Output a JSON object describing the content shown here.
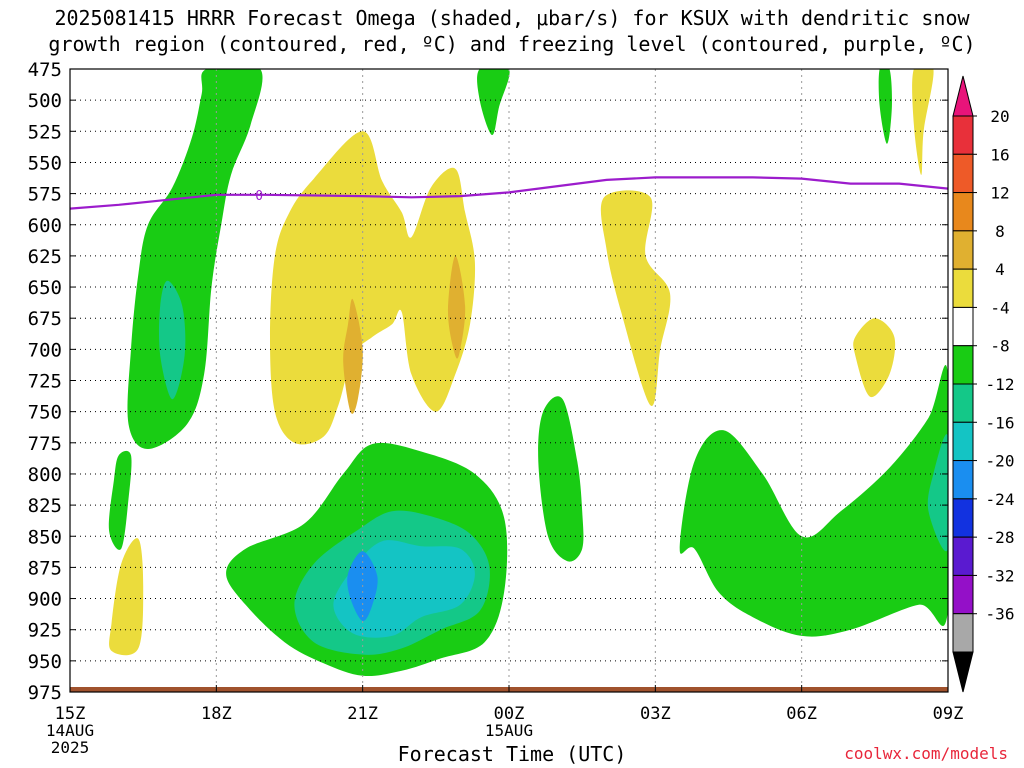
{
  "title_line1": "2025081415 HRRR Forecast Omega (shaded, μbar/s) for KSUX with dendritic snow",
  "title_line2": "growth region (contoured, red, ºC) and freezing level (contoured, purple, ºC)",
  "credit": "coolwx.com/models",
  "chart_data": {
    "type": "contour",
    "title": "2025081415 HRRR Forecast Omega (shaded, μbar/s) for KSUX with dendritic snow growth region (contoured, red, ºC) and freezing level (contoured, purple, ºC)",
    "xlabel": "Forecast Time (UTC)",
    "ylabel": "",
    "x_ticks": [
      {
        "hour": 0,
        "label": "15Z",
        "sub": [
          "14AUG",
          "2025"
        ]
      },
      {
        "hour": 3,
        "label": "18Z",
        "sub": []
      },
      {
        "hour": 6,
        "label": "21Z",
        "sub": []
      },
      {
        "hour": 9,
        "label": "00Z",
        "sub": [
          "15AUG"
        ]
      },
      {
        "hour": 12,
        "label": "03Z",
        "sub": []
      },
      {
        "hour": 15,
        "label": "06Z",
        "sub": []
      },
      {
        "hour": 18,
        "label": "09Z",
        "sub": []
      }
    ],
    "xlim": [
      0,
      18
    ],
    "ylim": [
      475,
      975
    ],
    "y_ticks": [
      475,
      500,
      525,
      550,
      575,
      600,
      625,
      650,
      675,
      700,
      725,
      750,
      775,
      800,
      825,
      850,
      875,
      900,
      925,
      950,
      975
    ],
    "colorbar": {
      "labels": [
        20,
        16,
        12,
        8,
        4,
        -4,
        -8,
        -12,
        -16,
        -20,
        -24,
        -28,
        -32,
        -36
      ],
      "colors": [
        "#e8147a",
        "#e8303a",
        "#ee5a28",
        "#e8881c",
        "#e0b030",
        "#ebdc3c",
        "#ffffff",
        "#19cc14",
        "#14c888",
        "#14c4c4",
        "#1a8ef0",
        "#1232e0",
        "#5a1ad0",
        "#9410c8",
        "#a8a8a8",
        "#000000"
      ]
    },
    "freezing_level": {
      "label": "0",
      "points": [
        [
          0,
          587
        ],
        [
          1,
          584
        ],
        [
          2,
          580
        ],
        [
          3,
          576
        ],
        [
          4,
          576
        ],
        [
          6,
          577
        ],
        [
          7,
          578
        ],
        [
          8,
          577
        ],
        [
          9,
          574
        ],
        [
          10,
          569
        ],
        [
          11,
          564
        ],
        [
          12,
          562
        ],
        [
          13,
          562
        ],
        [
          14,
          562
        ],
        [
          15,
          563
        ],
        [
          16,
          567
        ],
        [
          17,
          567
        ],
        [
          18,
          571
        ]
      ]
    },
    "omega_regions": [
      {
        "level": "-4",
        "color": "#19cc14",
        "points": [
          [
            2.8,
            475
          ],
          [
            3.9,
            475
          ],
          [
            3.7,
            520
          ],
          [
            3.3,
            560
          ],
          [
            3.1,
            600
          ],
          [
            2.9,
            650
          ],
          [
            2.75,
            720
          ],
          [
            2.4,
            760
          ],
          [
            1.6,
            780
          ],
          [
            1.2,
            760
          ],
          [
            1.25,
            700
          ],
          [
            1.4,
            640
          ],
          [
            1.6,
            600
          ],
          [
            2.1,
            570
          ],
          [
            2.5,
            530
          ],
          [
            2.7,
            495
          ]
        ]
      },
      {
        "level": "-8",
        "color": "#14c888",
        "points": [
          [
            2.0,
            645
          ],
          [
            2.3,
            665
          ],
          [
            2.35,
            705
          ],
          [
            2.1,
            740
          ],
          [
            1.85,
            705
          ],
          [
            1.85,
            665
          ]
        ]
      },
      {
        "level": "-4",
        "color": "#19cc14",
        "points": [
          [
            1.0,
            785
          ],
          [
            1.25,
            785
          ],
          [
            1.2,
            820
          ],
          [
            1.05,
            860
          ],
          [
            0.8,
            845
          ],
          [
            0.9,
            805
          ]
        ]
      },
      {
        "level": "-4",
        "color": "#19cc14",
        "points": [
          [
            8.4,
            475
          ],
          [
            9.0,
            475
          ],
          [
            8.8,
            505
          ],
          [
            8.65,
            528
          ],
          [
            8.4,
            500
          ]
        ]
      },
      {
        "level": "-4",
        "color": "#19cc14",
        "points": [
          [
            16.6,
            475
          ],
          [
            16.8,
            475
          ],
          [
            16.85,
            505
          ],
          [
            16.75,
            535
          ],
          [
            16.6,
            505
          ]
        ]
      },
      {
        "level": "-4",
        "color": "#19cc14",
        "points": [
          [
            9.7,
            750
          ],
          [
            10.1,
            740
          ],
          [
            10.4,
            790
          ],
          [
            10.5,
            830
          ],
          [
            10.5,
            860
          ],
          [
            10.2,
            870
          ],
          [
            9.8,
            850
          ],
          [
            9.6,
            790
          ]
        ]
      },
      {
        "level": "-4",
        "color": "#19cc14",
        "points": [
          [
            6.2,
            776
          ],
          [
            7.2,
            782
          ],
          [
            8.3,
            800
          ],
          [
            8.9,
            835
          ],
          [
            8.9,
            895
          ],
          [
            8.5,
            935
          ],
          [
            7.6,
            948
          ],
          [
            6.8,
            958
          ],
          [
            6.0,
            962
          ],
          [
            5.2,
            952
          ],
          [
            4.4,
            935
          ],
          [
            3.6,
            905
          ],
          [
            3.2,
            880
          ],
          [
            3.6,
            860
          ],
          [
            4.8,
            840
          ],
          [
            5.6,
            800
          ]
        ]
      },
      {
        "level": "-8",
        "color": "#14c888",
        "points": [
          [
            6.6,
            830
          ],
          [
            7.4,
            834
          ],
          [
            8.2,
            848
          ],
          [
            8.6,
            875
          ],
          [
            8.4,
            910
          ],
          [
            7.6,
            925
          ],
          [
            6.8,
            940
          ],
          [
            6.0,
            945
          ],
          [
            5.0,
            935
          ],
          [
            4.6,
            905
          ],
          [
            5.0,
            872
          ],
          [
            5.9,
            845
          ]
        ]
      },
      {
        "level": "-12",
        "color": "#14c4c4",
        "points": [
          [
            6.4,
            854
          ],
          [
            7.2,
            858
          ],
          [
            8.0,
            860
          ],
          [
            8.3,
            880
          ],
          [
            8.0,
            905
          ],
          [
            7.2,
            915
          ],
          [
            6.6,
            930
          ],
          [
            5.8,
            928
          ],
          [
            5.4,
            905
          ],
          [
            5.8,
            876
          ]
        ]
      },
      {
        "level": "-16",
        "color": "#1a8ef0",
        "points": [
          [
            6.0,
            862
          ],
          [
            6.3,
            882
          ],
          [
            6.2,
            905
          ],
          [
            6.0,
            918
          ],
          [
            5.75,
            900
          ],
          [
            5.7,
            880
          ]
        ]
      },
      {
        "level": "-4",
        "color": "#19cc14",
        "points": [
          [
            12.8,
            790
          ],
          [
            13.4,
            765
          ],
          [
            14.2,
            800
          ],
          [
            15.0,
            850
          ],
          [
            15.8,
            830
          ],
          [
            16.8,
            795
          ],
          [
            17.6,
            755
          ],
          [
            18,
            720
          ],
          [
            18,
            910
          ],
          [
            17.4,
            905
          ],
          [
            16.0,
            925
          ],
          [
            15.0,
            930
          ],
          [
            14.0,
            915
          ],
          [
            13.3,
            895
          ],
          [
            12.8,
            860
          ],
          [
            12.5,
            860
          ]
        ]
      },
      {
        "level": "-8",
        "color": "#14c888",
        "points": [
          [
            18,
            770
          ],
          [
            17.7,
            800
          ],
          [
            17.6,
            830
          ],
          [
            18,
            860
          ]
        ]
      }
    ],
    "positive_regions": [
      {
        "level": "4",
        "color": "#ebdc3c",
        "points": [
          [
            6.0,
            525
          ],
          [
            6.4,
            565
          ],
          [
            6.8,
            590
          ],
          [
            7.0,
            610
          ],
          [
            7.4,
            570
          ],
          [
            7.9,
            555
          ],
          [
            8.1,
            590
          ],
          [
            8.3,
            630
          ],
          [
            8.2,
            680
          ],
          [
            7.9,
            720
          ],
          [
            7.5,
            750
          ],
          [
            7.0,
            720
          ],
          [
            6.8,
            670
          ],
          [
            6.6,
            680
          ],
          [
            6.2,
            690
          ],
          [
            5.8,
            705
          ],
          [
            5.5,
            745
          ],
          [
            5.2,
            770
          ],
          [
            4.6,
            775
          ],
          [
            4.2,
            750
          ],
          [
            4.1,
            690
          ],
          [
            4.2,
            625
          ],
          [
            4.5,
            590
          ],
          [
            5.0,
            563
          ]
        ]
      },
      {
        "level": "8",
        "color": "#e0b030",
        "points": [
          [
            5.8,
            660
          ],
          [
            6.0,
            700
          ],
          [
            5.9,
            740
          ],
          [
            5.75,
            750
          ],
          [
            5.6,
            710
          ],
          [
            5.7,
            680
          ]
        ]
      },
      {
        "level": "8",
        "color": "#e0b030",
        "points": [
          [
            7.9,
            625
          ],
          [
            8.1,
            665
          ],
          [
            8.0,
            700
          ],
          [
            7.9,
            705
          ],
          [
            7.75,
            670
          ]
        ]
      },
      {
        "level": "4",
        "color": "#ebdc3c",
        "points": [
          [
            10.95,
            578
          ],
          [
            11.9,
            578
          ],
          [
            11.8,
            625
          ],
          [
            12.3,
            655
          ],
          [
            12.1,
            700
          ],
          [
            11.9,
            745
          ],
          [
            11.3,
            670
          ],
          [
            11.0,
            620
          ]
        ]
      },
      {
        "level": "4",
        "color": "#ebdc3c",
        "points": [
          [
            1.05,
            872
          ],
          [
            1.4,
            852
          ],
          [
            1.5,
            890
          ],
          [
            1.4,
            940
          ],
          [
            0.85,
            942
          ],
          [
            0.85,
            920
          ]
        ]
      },
      {
        "level": "4",
        "color": "#ebdc3c",
        "points": [
          [
            17.3,
            475
          ],
          [
            17.7,
            475
          ],
          [
            17.5,
            525
          ],
          [
            17.45,
            560
          ],
          [
            17.3,
            520
          ]
        ]
      },
      {
        "level": "4",
        "color": "#ebdc3c",
        "points": [
          [
            16.5,
            675
          ],
          [
            16.9,
            690
          ],
          [
            16.8,
            720
          ],
          [
            16.4,
            738
          ],
          [
            16.1,
            705
          ],
          [
            16.1,
            690
          ]
        ]
      }
    ]
  }
}
